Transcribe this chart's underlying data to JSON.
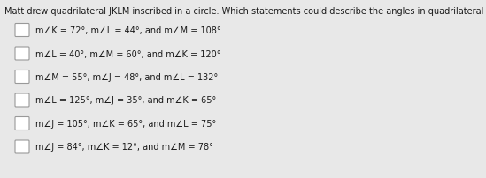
{
  "title": "Matt drew quadrilateral JKLM inscribed in a circle. Which statements could describe the angles in quadrilateral JKLM?",
  "options": [
    "m∠K = 72°, m∠L = 44°, and m∠M = 108°",
    "m∠L = 40°, m∠M = 60°, and m∠K = 120°",
    "m∠M = 55°, m∠J = 48°, and m∠L = 132°",
    "m∠L = 125°, m∠J = 35°, and m∠K = 65°",
    "m∠J = 105°, m∠K = 65°, and m∠L = 75°",
    "m∠J = 84°, m∠K = 12°, and m∠M = 78°"
  ],
  "bg_color": "#e8e8e8",
  "text_color": "#1a1a1a",
  "checkbox_edge_color": "#999999",
  "title_fontsize": 7.0,
  "option_fontsize": 7.0
}
